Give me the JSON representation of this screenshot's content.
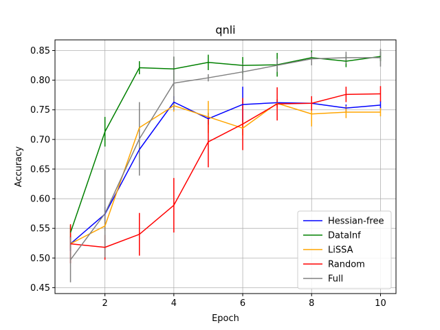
{
  "chart_data": {
    "type": "line",
    "title": "qnli",
    "xlabel": "Epoch",
    "ylabel": "Accuracy",
    "xlim": [
      0.55,
      10.45
    ],
    "ylim": [
      0.44,
      0.868
    ],
    "xticks": [
      2,
      4,
      6,
      8,
      10
    ],
    "yticks": [
      0.45,
      0.5,
      0.55,
      0.6,
      0.65,
      0.7,
      0.75,
      0.8,
      0.85
    ],
    "grid": true,
    "legend_position": "lower right",
    "x": [
      1,
      2,
      3,
      4,
      5,
      6,
      7,
      8,
      9,
      10
    ],
    "series": [
      {
        "name": "Hessian-free",
        "color": "#0000ff",
        "values": [
          0.524,
          0.574,
          0.683,
          0.763,
          0.735,
          0.759,
          0.762,
          0.761,
          0.753,
          0.758
        ],
        "errors": [
          0.012,
          0.012,
          0.018,
          0.01,
          0.01,
          0.03,
          0.006,
          0.006,
          0.006,
          0.007
        ]
      },
      {
        "name": "DataInf",
        "color": "#008000",
        "values": [
          0.543,
          0.713,
          0.821,
          0.819,
          0.83,
          0.825,
          0.826,
          0.838,
          0.832,
          0.84
        ],
        "errors": [
          0.012,
          0.025,
          0.011,
          0.02,
          0.013,
          0.014,
          0.02,
          0.012,
          0.01,
          0.008
        ]
      },
      {
        "name": "LiSSA",
        "color": "#ffa500",
        "values": [
          0.524,
          0.554,
          0.72,
          0.757,
          0.738,
          0.719,
          0.761,
          0.743,
          0.746,
          0.746
        ],
        "errors": [
          0.008,
          0.008,
          0.01,
          0.01,
          0.027,
          0.012,
          0.007,
          0.021,
          0.01,
          0.007
        ]
      },
      {
        "name": "Random",
        "color": "#ff0000",
        "values": [
          0.524,
          0.518,
          0.54,
          0.589,
          0.696,
          0.726,
          0.76,
          0.761,
          0.776,
          0.777
        ],
        "errors": [
          0.033,
          0.021,
          0.036,
          0.046,
          0.043,
          0.044,
          0.028,
          0.012,
          0.013,
          0.013
        ]
      },
      {
        "name": "Full",
        "color": "#808080",
        "values": [
          0.497,
          0.575,
          0.701,
          0.795,
          0.804,
          0.814,
          0.825,
          0.836,
          0.838,
          0.838
        ],
        "errors": [
          0.038,
          0.074,
          0.062,
          0.045,
          0.006,
          0.014,
          0.011,
          0.011,
          0.01,
          0.015
        ]
      }
    ]
  }
}
